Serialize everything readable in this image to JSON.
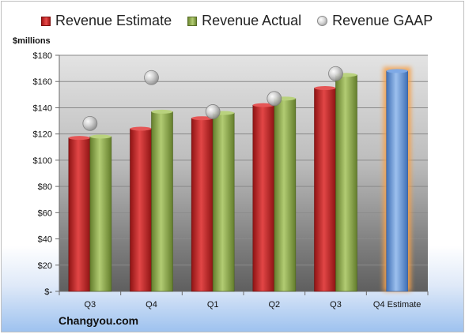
{
  "legend": {
    "estimate": "Revenue Estimate",
    "actual": "Revenue Actual",
    "gaap": "Revenue GAAP"
  },
  "unit_label": "$millions",
  "brand": "Changyou.com",
  "colors": {
    "estimate": "#c42020",
    "actual": "#8aa548",
    "gaap": "#b8b8b8",
    "estimate_projection": "#5f8fd3",
    "projection_glow": "#f5a14b"
  },
  "chart_data": {
    "type": "bar",
    "categories": [
      "Q3",
      "Q4",
      "Q1",
      "Q2",
      "Q3",
      "Q4 Estimate"
    ],
    "series": [
      {
        "name": "Revenue Estimate",
        "values": [
          117,
          124,
          132,
          142,
          155,
          168
        ]
      },
      {
        "name": "Revenue Actual",
        "values": [
          118,
          137,
          136,
          147,
          165,
          null
        ]
      },
      {
        "name": "Revenue GAAP",
        "values": [
          128,
          163,
          137,
          147,
          166,
          null
        ]
      }
    ],
    "title": "",
    "xlabel": "",
    "ylabel": "$millions",
    "ylim": [
      0,
      180
    ],
    "yticks": [
      0,
      20,
      40,
      60,
      80,
      100,
      120,
      140,
      160,
      180
    ],
    "ytick_labels": [
      "$-",
      "$20",
      "$40",
      "$60",
      "$80",
      "$100",
      "$120",
      "$140",
      "$160",
      "$180"
    ],
    "grid": true,
    "legend_position": "top"
  }
}
